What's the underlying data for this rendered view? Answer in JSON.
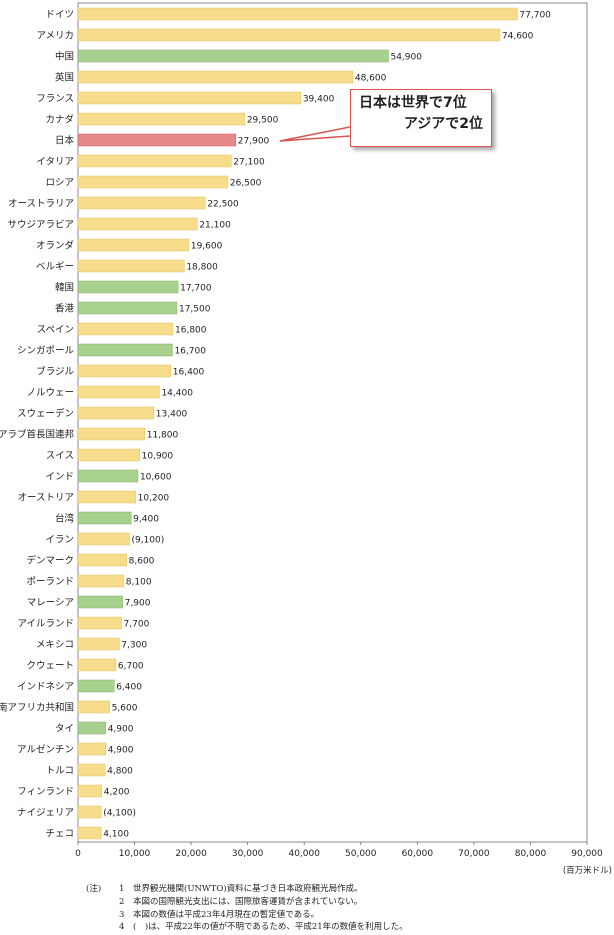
{
  "chart_data": {
    "type": "bar",
    "orientation": "horizontal",
    "categories": [
      "ドイツ",
      "アメリカ",
      "中国",
      "英国",
      "フランス",
      "カナダ",
      "日本",
      "イタリア",
      "ロシア",
      "オーストラリア",
      "サウジアラビア",
      "オランダ",
      "ベルギー",
      "韓国",
      "香港",
      "スペイン",
      "シンガポール",
      "ブラジル",
      "ノルウェー",
      "スウェーデン",
      "アラブ首長国連邦",
      "スイス",
      "インド",
      "オーストリア",
      "台湾",
      "イラン",
      "デンマーク",
      "ポーランド",
      "マレーシア",
      "アイルランド",
      "メキシコ",
      "クウェート",
      "インドネシア",
      "南アフリカ共和国",
      "タイ",
      "アルゼンチン",
      "トルコ",
      "フィンランド",
      "ナイジェリア",
      "チェコ"
    ],
    "values": [
      77700,
      74600,
      54900,
      48600,
      39400,
      29500,
      27900,
      27100,
      26500,
      22500,
      21100,
      19600,
      18800,
      17700,
      17500,
      16800,
      16700,
      16400,
      14400,
      13400,
      11800,
      10900,
      10600,
      10200,
      9400,
      9100,
      8600,
      8100,
      7900,
      7700,
      7300,
      6700,
      6400,
      5600,
      4900,
      4900,
      4800,
      4200,
      4100,
      4100
    ],
    "value_labels": [
      "77,700",
      "74,600",
      "54,900",
      "48,600",
      "39,400",
      "29,500",
      "27,900",
      "27,100",
      "26,500",
      "22,500",
      "21,100",
      "19,600",
      "18,800",
      "17,700",
      "17,500",
      "16,800",
      "16,700",
      "16,400",
      "14,400",
      "13,400",
      "11,800",
      "10,900",
      "10,600",
      "10,200",
      "9,400",
      "(9,100)",
      "8,600",
      "8,100",
      "7,900",
      "7,700",
      "7,300",
      "6,700",
      "6,400",
      "5,600",
      "4,900",
      "4,900",
      "4,800",
      "4,200",
      "(4,100)",
      "4,100"
    ],
    "bar_group": [
      "other",
      "other",
      "asia",
      "other",
      "other",
      "other",
      "japan",
      "other",
      "other",
      "other",
      "other",
      "other",
      "other",
      "asia",
      "asia",
      "other",
      "asia",
      "other",
      "other",
      "other",
      "other",
      "other",
      "asia",
      "other",
      "asia",
      "other",
      "other",
      "other",
      "asia",
      "other",
      "other",
      "other",
      "asia",
      "other",
      "asia",
      "other",
      "other",
      "other",
      "other",
      "other"
    ],
    "colors": {
      "other": "#f7dc8c",
      "asia": "#a9d18e",
      "japan": "#e8888a"
    },
    "xlim": [
      0,
      90000
    ],
    "xticks": [
      0,
      10000,
      20000,
      30000,
      40000,
      50000,
      60000,
      70000,
      80000,
      90000
    ],
    "xtick_labels": [
      "0",
      "10,000",
      "20,000",
      "30,000",
      "40,000",
      "50,000",
      "60,000",
      "70,000",
      "80,000",
      "90,000"
    ],
    "unit_label": "(百万米ドル)",
    "annotation": {
      "line1": "日本は世界で7位",
      "line2": "アジアで2位",
      "target_category": "日本"
    }
  },
  "notes": {
    "prefix": "(注)",
    "items": [
      {
        "num": "1",
        "text": "世界観光機関(UNWTO)資料に基づき日本政府観光局作成。"
      },
      {
        "num": "2",
        "text": "本図の国際観光支出には、国際旅客運賃が含まれていない。"
      },
      {
        "num": "3",
        "text": "本図の数値は平成23年4月現在の暫定値である。"
      },
      {
        "num": "4",
        "text": "(　)は、平成22年の値が不明であるため、平成21年の数値を利用した。"
      }
    ]
  }
}
